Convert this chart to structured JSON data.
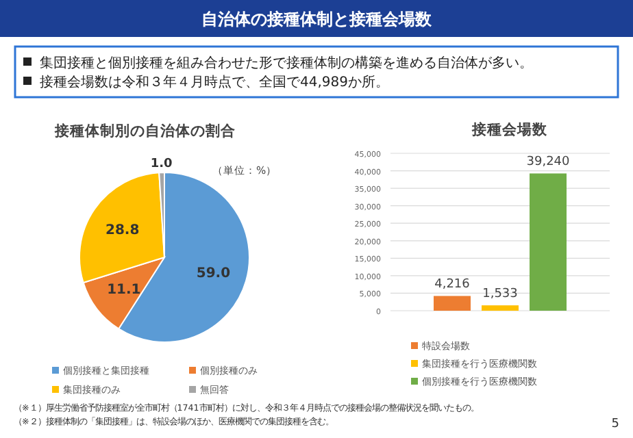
{
  "chart_data": [
    {
      "type": "other",
      "title": "自治体の接種体制と接種会場数",
      "annotations": [
        "集団接種と個別接種を組み合わせた形で接種体制の構築を進める自治体が多い。",
        "接種会場数は令和３年４月時点で、全国で44,989か所。",
        "（※１）厚生労働省予防接種室が全市町村（1741市町村）に対し、令和３年４月時点での接種会場の整備状況を聞いたもの。",
        "（※２）接種体制の「集団接種」は、特設会場のほか、医療機関での集団接種を含む。",
        "5"
      ]
    },
    {
      "type": "pie",
      "title": "接種体制別の自治体の割合",
      "categories": [
        "個別接種と集団接種",
        "個別接種のみ",
        "集団接種のみ",
        "無回答"
      ],
      "values": [
        59.0,
        11.1,
        28.8,
        1.0
      ],
      "value_labels": [
        "59.0",
        "11.1",
        "28.8",
        "1.0"
      ],
      "colors": [
        "#5b9bd5",
        "#ed7d31",
        "#ffc000",
        "#a5a5a5"
      ],
      "legend": "bottom",
      "annotations": [
        "（単位：%）"
      ]
    },
    {
      "type": "bar",
      "title": "接種会場数",
      "categories": [
        null
      ],
      "series": [
        {
          "name": "特設会場数",
          "color": "#ed7d31",
          "values": [
            4216
          ],
          "value_labels": [
            "4,216"
          ]
        },
        {
          "name": "集団接種を行う医療機関数",
          "color": "#ffc000",
          "values": [
            1533
          ],
          "value_labels": [
            "1,533"
          ]
        },
        {
          "name": "個別接種を行う医療機関数",
          "color": "#70ad47",
          "values": [
            39240
          ],
          "value_labels": [
            "39,240"
          ]
        }
      ],
      "ylim": [
        0,
        45000
      ],
      "yticks": [
        0,
        {
          "value": 5000,
          "label": "5,000"
        },
        {
          "value": 10000,
          "label": "10,000"
        },
        {
          "value": 15000,
          "label": "15,000"
        },
        {
          "value": 20000,
          "label": "20,000"
        },
        {
          "value": 25000,
          "label": "25,000"
        },
        {
          "value": 30000,
          "label": "30,000"
        },
        {
          "value": 35000,
          "label": "35,000"
        },
        {
          "value": 40000,
          "label": "40,000"
        },
        {
          "value": 45000,
          "label": "45,000"
        }
      ],
      "grid": "y",
      "legend": "bottom"
    }
  ]
}
